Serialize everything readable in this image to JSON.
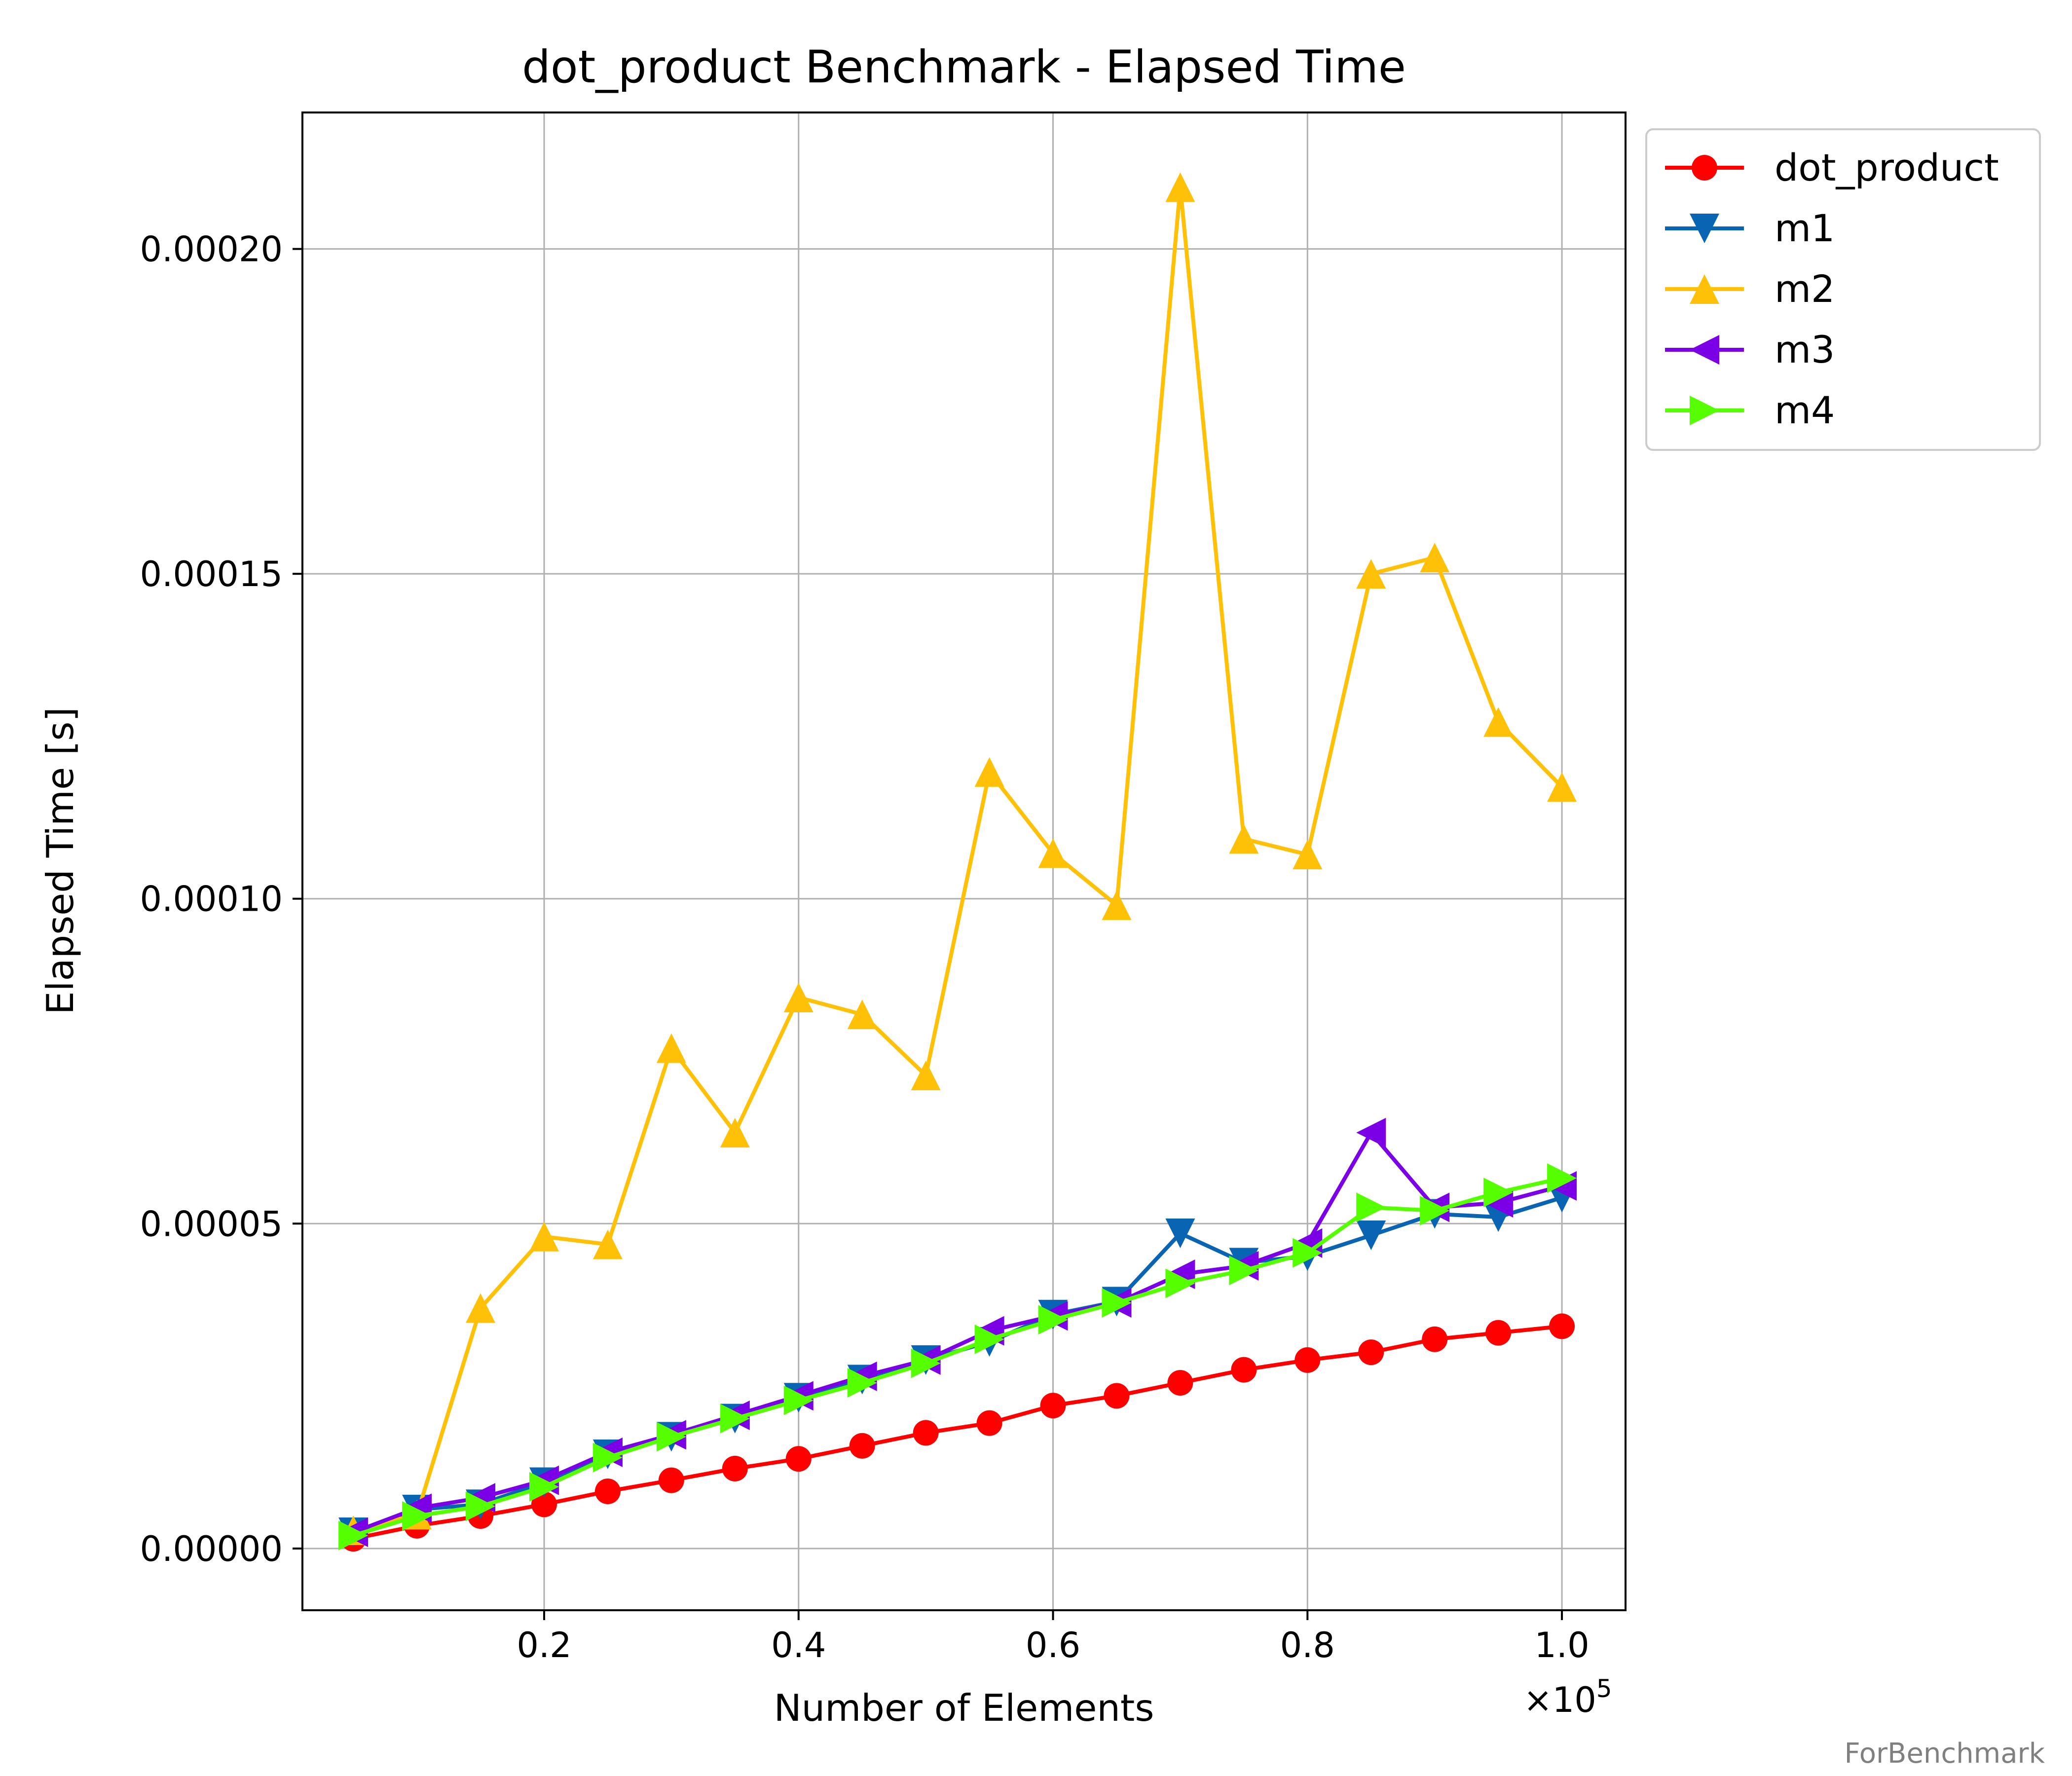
{
  "chart_data": {
    "type": "line",
    "title": "dot_product Benchmark - Elapsed Time",
    "xlabel": "Number of Elements",
    "ylabel": "Elapsed Time [s]",
    "x_multiplier": "×10",
    "x_multiplier_exp": "5",
    "xlim": [
      0.01,
      1.05
    ],
    "ylim": [
      -9.5e-06,
      0.000221
    ],
    "xticks": [
      0.2,
      0.4,
      0.6,
      0.8,
      1.0
    ],
    "xtick_labels": [
      "0.2",
      "0.4",
      "0.6",
      "0.8",
      "1.0"
    ],
    "yticks": [
      0,
      5e-05,
      0.0001,
      0.00015,
      0.0002
    ],
    "ytick_labels": [
      "0.00000",
      "0.00005",
      "0.00010",
      "0.00015",
      "0.00020"
    ],
    "grid": true,
    "legend_position": "outside top-right",
    "x": [
      0.05,
      0.1,
      0.15,
      0.2,
      0.25,
      0.3,
      0.35,
      0.4,
      0.45,
      0.5,
      0.55,
      0.6,
      0.65,
      0.7,
      0.75,
      0.8,
      0.85,
      0.9,
      0.95,
      1.0
    ],
    "series": [
      {
        "name": "dot_product",
        "color": "#ff0000",
        "marker": "circle",
        "values": [
          1.5e-06,
          3.5e-06,
          5e-06,
          6.8e-06,
          8.8e-06,
          1.05e-05,
          1.23e-05,
          1.38e-05,
          1.58e-05,
          1.78e-05,
          1.93e-05,
          2.2e-05,
          2.35e-05,
          2.55e-05,
          2.75e-05,
          2.9e-05,
          3.02e-05,
          3.22e-05,
          3.32e-05,
          3.42e-05
        ]
      },
      {
        "name": "m1",
        "color": "#0a64b4",
        "marker": "triangle-down",
        "values": [
          2.5e-06,
          6e-06,
          6.8e-06,
          1.02e-05,
          1.45e-05,
          1.72e-05,
          2e-05,
          2.32e-05,
          2.6e-05,
          2.9e-05,
          3.18e-05,
          3.6e-05,
          3.8e-05,
          4.85e-05,
          4.4e-05,
          4.5e-05,
          4.82e-05,
          5.15e-05,
          5.1e-05,
          5.4e-05
        ]
      },
      {
        "name": "m2",
        "color": "#ffc107",
        "marker": "triangle-up",
        "values": [
          2.8e-06,
          5.2e-06,
          3.7e-05,
          4.8e-05,
          4.68e-05,
          7.7e-05,
          6.4e-05,
          8.48e-05,
          8.22e-05,
          7.28e-05,
          0.0001195,
          0.000107,
          9.9e-05,
          0.0002095,
          0.0001092,
          0.0001068,
          0.00015,
          0.0001525,
          0.0001272,
          0.0001172
        ]
      },
      {
        "name": "m3",
        "color": "#7b00e6",
        "marker": "triangle-left",
        "values": [
          2.5e-06,
          6.2e-06,
          7.8e-06,
          1.05e-05,
          1.48e-05,
          1.75e-05,
          2.05e-05,
          2.35e-05,
          2.65e-05,
          2.9e-05,
          3.35e-05,
          3.58e-05,
          3.78e-05,
          4.22e-05,
          4.35e-05,
          4.7e-05,
          6.4e-05,
          5.25e-05,
          5.32e-05,
          5.58e-05
        ]
      },
      {
        "name": "m4",
        "color": "#55ff00",
        "marker": "triangle-right",
        "values": [
          2e-06,
          5e-06,
          6.5e-06,
          9.5e-06,
          1.4e-05,
          1.72e-05,
          2e-05,
          2.28e-05,
          2.55e-05,
          2.85e-05,
          3.22e-05,
          3.52e-05,
          3.78e-05,
          4.08e-05,
          4.28e-05,
          4.55e-05,
          5.25e-05,
          5.2e-05,
          5.48e-05,
          5.7e-05
        ]
      }
    ]
  },
  "watermark": "ForBenchmark"
}
